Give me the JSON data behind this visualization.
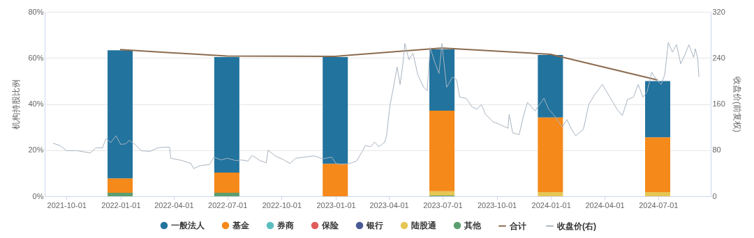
{
  "chart_data": {
    "type": "bar",
    "stacked": true,
    "ylabel": "机构持股比例",
    "y2label": "收盘价(前复权)",
    "x": [
      "2021-12-31",
      "2022-06-30",
      "2022-12-31",
      "2023-06-30",
      "2023-12-31",
      "2024-06-30"
    ],
    "series": [
      {
        "name": "其他",
        "color": "#5c9e6e",
        "values": [
          1.5,
          1.5,
          null,
          0.3,
          null,
          null
        ]
      },
      {
        "name": "陆股通",
        "color": "#e6c655",
        "values": [
          null,
          null,
          null,
          1.9,
          1.8,
          1.8
        ]
      },
      {
        "name": "银行",
        "color": "#4a5a94",
        "values": [
          null,
          null,
          null,
          null,
          null,
          null
        ]
      },
      {
        "name": "保险",
        "color": "#e25c5c",
        "values": [
          null,
          null,
          null,
          null,
          null,
          null
        ]
      },
      {
        "name": "券商",
        "color": "#5bbfc0",
        "values": [
          null,
          null,
          null,
          null,
          null,
          null
        ]
      },
      {
        "name": "基金",
        "color": "#f5891a",
        "values": [
          6.3,
          8.8,
          14.1,
          34.9,
          32.4,
          23.8
        ]
      },
      {
        "name": "一般法人",
        "color": "#22739e",
        "values": [
          55.5,
          50.1,
          46.3,
          26.7,
          27.1,
          24.4
        ]
      },
      {
        "name": "合计",
        "type": "line",
        "color": "#8b6b4e",
        "values": [
          63.6,
          60.8,
          60.7,
          64.3,
          61.6,
          50.4
        ]
      },
      {
        "name": "收盘价(右)",
        "type": "line",
        "axis": "y2",
        "color": "#a8b4c0",
        "x": [
          "2021-09-08",
          "2021-09-20",
          "2021-10-01",
          "2021-10-20",
          "2021-11-10",
          "2021-11-20",
          "2021-12-01",
          "2021-12-07",
          "2021-12-15",
          "2021-12-24",
          "2022-01-01",
          "2022-01-10",
          "2022-01-15",
          "2022-01-25",
          "2022-02-05",
          "2022-02-20",
          "2022-03-05",
          "2022-03-15",
          "2022-03-25",
          "2022-03-27",
          "2022-04-15",
          "2022-04-30",
          "2022-05-05",
          "2022-05-15",
          "2022-06-01",
          "2022-06-08",
          "2022-06-20",
          "2022-07-01",
          "2022-07-15",
          "2022-07-25",
          "2022-08-05",
          "2022-08-12",
          "2022-08-25",
          "2022-09-05",
          "2022-09-08",
          "2022-09-20",
          "2022-10-05",
          "2022-10-15",
          "2022-10-25",
          "2022-11-10",
          "2022-11-25",
          "2022-12-10",
          "2022-12-25",
          "2023-01-01",
          "2023-01-10",
          "2023-01-25",
          "2023-02-05",
          "2023-02-15",
          "2023-02-20",
          "2023-03-01",
          "2023-03-08",
          "2023-03-15",
          "2023-03-25",
          "2023-03-28",
          "2023-04-03",
          "2023-04-08",
          "2023-04-15",
          "2023-04-20",
          "2023-04-25",
          "2023-04-28",
          "2023-05-05",
          "2023-05-12",
          "2023-05-20",
          "2023-05-30",
          "2023-06-05",
          "2023-06-10",
          "2023-06-18",
          "2023-06-25",
          "2023-06-30",
          "2023-07-08",
          "2023-07-18",
          "2023-07-25",
          "2023-07-30",
          "2023-08-10",
          "2023-08-20",
          "2023-08-28",
          "2023-09-05",
          "2023-09-12",
          "2023-09-25",
          "2023-10-05",
          "2023-10-20",
          "2023-10-22",
          "2023-10-28",
          "2023-11-08",
          "2023-11-15",
          "2023-11-22",
          "2023-12-05",
          "2023-12-20",
          "2023-12-28",
          "2024-01-05",
          "2024-01-20",
          "2024-01-28",
          "2024-02-05",
          "2024-02-12",
          "2024-02-25",
          "2024-03-05",
          "2024-03-15",
          "2024-03-28",
          "2024-04-10",
          "2024-04-22",
          "2024-05-01",
          "2024-05-10",
          "2024-05-20",
          "2024-05-28",
          "2024-06-05",
          "2024-06-12",
          "2024-06-20",
          "2024-06-28",
          "2024-07-06",
          "2024-07-12",
          "2024-07-18",
          "2024-07-25",
          "2024-08-01",
          "2024-08-08",
          "2024-08-15",
          "2024-08-22",
          "2024-08-30",
          "2024-09-02",
          "2024-09-06",
          "2024-09-08"
        ],
        "values": [
          92,
          88,
          79,
          79,
          75,
          84,
          84,
          100,
          93,
          105,
          90,
          91,
          97,
          90,
          79,
          78,
          84,
          85,
          85,
          66,
          62,
          57,
          48,
          53,
          55,
          68,
          63,
          66,
          62,
          63,
          61,
          71,
          62,
          58,
          80,
          70,
          63,
          57,
          66,
          68,
          70,
          65,
          68,
          57,
          55,
          57,
          61,
          78,
          88,
          86,
          94,
          86,
          94,
          105,
          159,
          185,
          224,
          194,
          232,
          265,
          237,
          248,
          211,
          189,
          183,
          258,
          232,
          213,
          265,
          189,
          207,
          202,
          172,
          170,
          155,
          151,
          159,
          142,
          129,
          125,
          118,
          142,
          110,
          107,
          138,
          163,
          148,
          170,
          151,
          142,
          120,
          133,
          116,
          105,
          116,
          159,
          176,
          194,
          172,
          151,
          140,
          168,
          172,
          194,
          172,
          181,
          215,
          202,
          194,
          211,
          267,
          250,
          263,
          230,
          245,
          263,
          241,
          256,
          239,
          207
        ]
      }
    ],
    "xlim": [
      "2021-08-25",
      "2024-09-28"
    ],
    "xticks": [
      "2021-10-01",
      "2022-01-01",
      "2022-04-01",
      "2022-07-01",
      "2022-10-01",
      "2023-01-01",
      "2023-04-01",
      "2023-07-01",
      "2023-10-01",
      "2024-01-01",
      "2024-04-01",
      "2024-07-01"
    ],
    "ylim": [
      0,
      80
    ],
    "yticks": [
      {
        "value": 0,
        "label": "0%"
      },
      {
        "value": 20,
        "label": "20%"
      },
      {
        "value": 40,
        "label": "40%"
      },
      {
        "value": 60,
        "label": "60%"
      },
      {
        "value": 80,
        "label": "80%"
      }
    ],
    "y2lim": [
      0,
      320
    ],
    "y2ticks": [
      0,
      80,
      160,
      240,
      320
    ],
    "grid": "y",
    "legend": "bottom"
  }
}
